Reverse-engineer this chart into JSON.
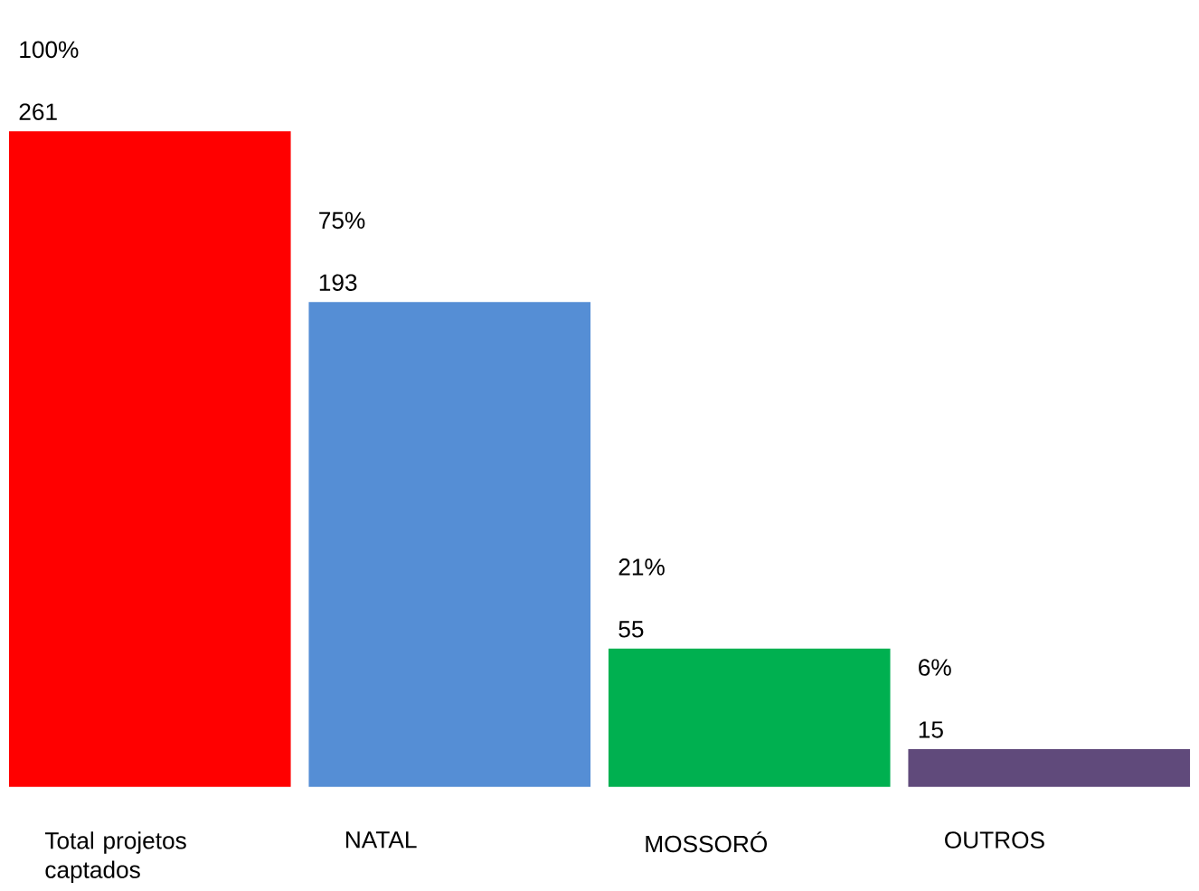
{
  "chart_data": {
    "type": "bar",
    "categories": [
      "Total projetos captados",
      "NATAL",
      "MOSSORÓ",
      "OUTROS"
    ],
    "values": [
      261,
      193,
      55,
      15
    ],
    "colors": [
      "#ff0000",
      "#558ed5",
      "#00b050",
      "#604a7b"
    ],
    "data_labels": true,
    "annotations": [
      "100%",
      "75%",
      "21%",
      "6%"
    ]
  }
}
